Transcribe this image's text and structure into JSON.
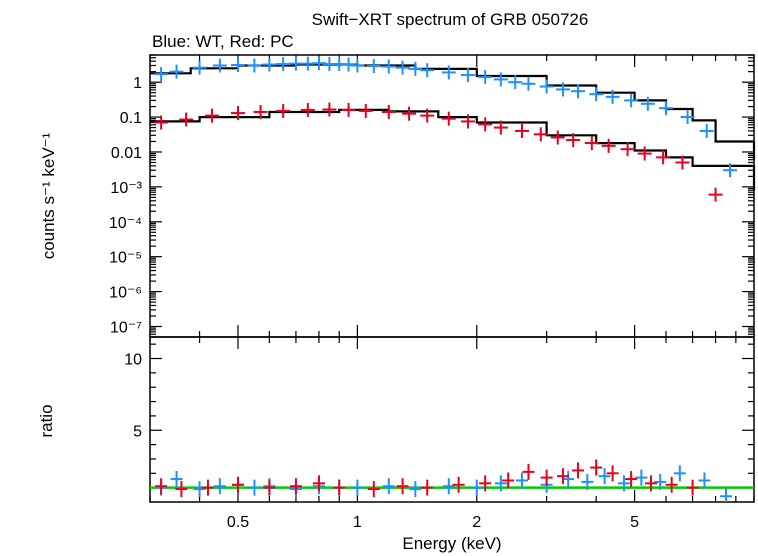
{
  "chart_data": {
    "type": "scatter",
    "title": "Swift−XRT spectrum of GRB 050726",
    "subtitle": "Blue: WT, Red: PC",
    "xlabel": "Energy (keV)",
    "x_scale": "log",
    "xlim": [
      0.3,
      10
    ],
    "x_ticks": [
      "0.5",
      "1",
      "2",
      "5"
    ],
    "panels": [
      {
        "name": "spectrum",
        "ylabel": "counts s⁻¹ keV⁻¹",
        "y_scale": "log",
        "ylim": [
          5e-08,
          6
        ],
        "y_ticks": [
          "1",
          "0.1",
          "0.01",
          "10⁻³",
          "10⁻⁴",
          "10⁻⁵",
          "10⁻⁶",
          "10⁻⁷"
        ],
        "series": [
          {
            "color": "#1e90ff",
            "points": [
              [
                0.32,
                1.7
              ],
              [
                0.35,
                2.0
              ],
              [
                0.4,
                2.6
              ],
              [
                0.45,
                3.0
              ],
              [
                0.5,
                3.1
              ],
              [
                0.55,
                3.0
              ],
              [
                0.6,
                3.2
              ],
              [
                0.65,
                3.3
              ],
              [
                0.7,
                3.4
              ],
              [
                0.75,
                3.4
              ],
              [
                0.8,
                3.5
              ],
              [
                0.85,
                3.3
              ],
              [
                0.9,
                3.3
              ],
              [
                0.95,
                3.2
              ],
              [
                1.0,
                3.0
              ],
              [
                1.1,
                2.9
              ],
              [
                1.2,
                2.8
              ],
              [
                1.3,
                2.6
              ],
              [
                1.4,
                2.4
              ],
              [
                1.5,
                2.2
              ],
              [
                1.7,
                1.9
              ],
              [
                1.9,
                1.6
              ],
              [
                2.1,
                1.4
              ],
              [
                2.3,
                1.2
              ],
              [
                2.5,
                1.0
              ],
              [
                2.7,
                0.9
              ],
              [
                3.0,
                0.75
              ],
              [
                3.3,
                0.62
              ],
              [
                3.6,
                0.55
              ],
              [
                4.0,
                0.45
              ],
              [
                4.4,
                0.38
              ],
              [
                4.9,
                0.3
              ],
              [
                5.4,
                0.24
              ],
              [
                6.0,
                0.18
              ],
              [
                6.8,
                0.1
              ],
              [
                7.6,
                0.04
              ],
              [
                8.7,
                0.003
              ]
            ],
            "model": [
              [
                0.3,
                1.8
              ],
              [
                0.38,
                2.5
              ],
              [
                0.5,
                3.0
              ],
              [
                0.7,
                3.2
              ],
              [
                1.0,
                3.0
              ],
              [
                1.4,
                2.4
              ],
              [
                2.0,
                1.5
              ],
              [
                3.0,
                0.8
              ],
              [
                4.0,
                0.5
              ],
              [
                5.0,
                0.3
              ],
              [
                6.0,
                0.17
              ],
              [
                7.0,
                0.08
              ],
              [
                8.0,
                0.02
              ],
              [
                10.0,
                0.006
              ]
            ]
          },
          {
            "color": "#e8001c",
            "points": [
              [
                0.32,
                0.07
              ],
              [
                0.37,
                0.085
              ],
              [
                0.43,
                0.11
              ],
              [
                0.5,
                0.13
              ],
              [
                0.57,
                0.14
              ],
              [
                0.65,
                0.15
              ],
              [
                0.75,
                0.16
              ],
              [
                0.85,
                0.165
              ],
              [
                0.95,
                0.16
              ],
              [
                1.05,
                0.15
              ],
              [
                1.2,
                0.14
              ],
              [
                1.35,
                0.125
              ],
              [
                1.5,
                0.11
              ],
              [
                1.7,
                0.09
              ],
              [
                1.9,
                0.075
              ],
              [
                2.1,
                0.062
              ],
              [
                2.3,
                0.05
              ],
              [
                2.6,
                0.04
              ],
              [
                2.9,
                0.032
              ],
              [
                3.2,
                0.026
              ],
              [
                3.5,
                0.022
              ],
              [
                3.9,
                0.018
              ],
              [
                4.3,
                0.015
              ],
              [
                4.8,
                0.012
              ],
              [
                5.3,
                0.009
              ],
              [
                5.9,
                0.007
              ],
              [
                6.6,
                0.005
              ],
              [
                8.0,
                0.0006
              ]
            ],
            "model": [
              [
                0.3,
                0.075
              ],
              [
                0.4,
                0.1
              ],
              [
                0.6,
                0.14
              ],
              [
                0.9,
                0.16
              ],
              [
                1.2,
                0.145
              ],
              [
                1.6,
                0.1
              ],
              [
                2.0,
                0.07
              ],
              [
                3.0,
                0.03
              ],
              [
                4.0,
                0.018
              ],
              [
                5.0,
                0.011
              ],
              [
                6.0,
                0.007
              ],
              [
                7.0,
                0.004
              ],
              [
                10.0,
                0.0008
              ]
            ]
          }
        ]
      },
      {
        "name": "ratio",
        "ylabel": "ratio",
        "y_scale": "linear",
        "ylim": [
          0,
          11.5
        ],
        "y_ticks": [
          "5",
          "10"
        ],
        "reference_line": {
          "y": 1,
          "color": "#00cc00"
        },
        "series": [
          {
            "color": "#1e90ff",
            "points": [
              [
                0.32,
                1.0
              ],
              [
                0.35,
                1.6
              ],
              [
                0.4,
                0.9
              ],
              [
                0.45,
                1.1
              ],
              [
                0.5,
                1.2
              ],
              [
                0.55,
                1.0
              ],
              [
                0.6,
                1.1
              ],
              [
                0.7,
                0.9
              ],
              [
                0.8,
                1.1
              ],
              [
                0.9,
                1.0
              ],
              [
                1.0,
                1.0
              ],
              [
                1.2,
                1.1
              ],
              [
                1.4,
                0.9
              ],
              [
                1.7,
                1.1
              ],
              [
                2.0,
                1.0
              ],
              [
                2.3,
                1.3
              ],
              [
                2.6,
                1.5
              ],
              [
                3.0,
                1.2
              ],
              [
                3.4,
                1.6
              ],
              [
                3.8,
                1.4
              ],
              [
                4.2,
                1.8
              ],
              [
                4.7,
                1.3
              ],
              [
                5.2,
                1.7
              ],
              [
                5.8,
                1.4
              ],
              [
                6.5,
                2.0
              ],
              [
                7.5,
                1.5
              ],
              [
                8.5,
                0.4
              ]
            ]
          },
          {
            "color": "#e8001c",
            "points": [
              [
                0.32,
                1.1
              ],
              [
                0.36,
                0.9
              ],
              [
                0.42,
                1.0
              ],
              [
                0.5,
                1.2
              ],
              [
                0.6,
                1.0
              ],
              [
                0.7,
                1.1
              ],
              [
                0.8,
                1.3
              ],
              [
                0.9,
                1.0
              ],
              [
                1.1,
                0.9
              ],
              [
                1.3,
                1.1
              ],
              [
                1.5,
                1.0
              ],
              [
                1.8,
                1.2
              ],
              [
                2.1,
                1.3
              ],
              [
                2.4,
                1.5
              ],
              [
                2.7,
                2.1
              ],
              [
                3.0,
                1.7
              ],
              [
                3.3,
                1.8
              ],
              [
                3.6,
                2.2
              ],
              [
                4.0,
                2.4
              ],
              [
                4.4,
                2.0
              ],
              [
                4.9,
                1.6
              ],
              [
                5.5,
                1.3
              ],
              [
                6.2,
                1.2
              ],
              [
                7.0,
                1.0
              ]
            ]
          }
        ]
      }
    ]
  }
}
